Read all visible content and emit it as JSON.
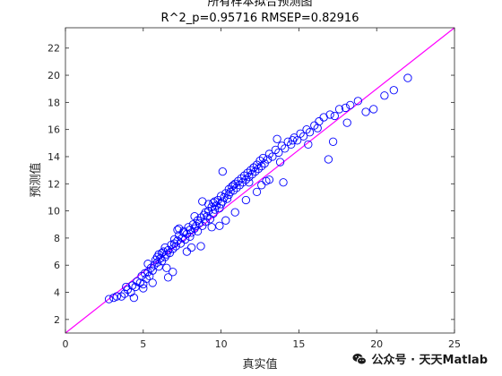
{
  "chart_data": {
    "type": "scatter",
    "title": "所有样本拟合预测图",
    "subtitle": "R^2_p=0.95716  RMSEP=0.82916",
    "xlabel": "真实值",
    "ylabel": "预测值",
    "xlim": [
      0,
      25
    ],
    "ylim": [
      1,
      23.5
    ],
    "xticks": [
      0,
      5,
      10,
      15,
      20,
      25
    ],
    "yticks": [
      2,
      4,
      6,
      8,
      10,
      12,
      14,
      16,
      18,
      20,
      22
    ],
    "grid": false,
    "colors": {
      "points": "#0000ff",
      "fit_line": "#ff00ff"
    },
    "fit_line": {
      "x": [
        0,
        25
      ],
      "y": [
        1,
        23.5
      ]
    },
    "points": {
      "x": [
        2.8,
        3.1,
        3.3,
        3.6,
        3.8,
        4.0,
        4.2,
        4.3,
        4.5,
        4.6,
        4.8,
        4.9,
        5.0,
        5.1,
        5.2,
        5.3,
        5.3,
        5.4,
        5.5,
        5.6,
        5.7,
        5.8,
        5.9,
        6.0,
        6.0,
        6.1,
        6.2,
        6.3,
        6.4,
        6.4,
        6.5,
        6.6,
        6.7,
        6.8,
        6.9,
        7.0,
        7.0,
        7.1,
        7.2,
        7.3,
        7.4,
        7.5,
        7.6,
        7.7,
        7.8,
        7.9,
        8.0,
        8.0,
        8.1,
        8.2,
        8.3,
        8.4,
        8.5,
        8.5,
        8.6,
        8.7,
        8.8,
        8.9,
        9.0,
        9.0,
        9.1,
        9.2,
        9.3,
        9.4,
        9.5,
        9.5,
        9.6,
        9.7,
        9.8,
        9.9,
        10.0,
        10.0,
        10.1,
        10.2,
        10.3,
        10.4,
        10.5,
        10.5,
        10.6,
        10.7,
        10.8,
        10.9,
        11.0,
        11.1,
        11.2,
        11.3,
        11.4,
        11.5,
        11.6,
        11.7,
        11.8,
        11.9,
        12.0,
        12.1,
        12.2,
        12.3,
        12.4,
        12.5,
        12.6,
        12.7,
        12.8,
        13.0,
        13.1,
        13.3,
        13.5,
        13.7,
        13.9,
        14.1,
        14.3,
        14.5,
        14.7,
        14.9,
        15.1,
        15.3,
        15.5,
        15.7,
        16.0,
        16.3,
        16.6,
        17.0,
        17.3,
        17.6,
        18.0,
        18.3,
        18.8,
        19.3,
        19.8,
        20.5,
        21.1,
        22.0,
        6.2,
        7.6,
        8.3,
        9.4,
        11.6,
        13.1,
        14.6,
        5.0,
        6.6,
        8.7,
        10.3,
        12.1,
        9.6,
        7.2,
        16.2,
        17.2,
        18.1,
        11.8,
        12.9,
        10.9,
        14.0,
        13.8,
        16.9,
        12.3,
        10.1,
        8.8,
        5.9,
        6.9,
        7.8,
        9.2,
        4.4,
        3.9,
        15.6,
        13.6,
        12.6,
        10.8,
        9.9,
        8.1,
        7.3,
        6.5,
        5.6
      ],
      "y": [
        3.5,
        3.6,
        3.7,
        3.7,
        3.9,
        4.2,
        4.0,
        4.5,
        4.4,
        4.8,
        4.7,
        5.2,
        4.6,
        5.4,
        5.0,
        5.5,
        6.1,
        5.2,
        5.8,
        5.6,
        6.0,
        6.4,
        6.2,
        5.9,
        6.8,
        6.5,
        6.3,
        7.0,
        6.6,
        7.3,
        6.8,
        7.1,
        6.9,
        7.5,
        7.2,
        7.6,
        7.9,
        7.4,
        7.8,
        8.2,
        7.6,
        8.0,
        8.5,
        7.9,
        8.3,
        8.8,
        8.1,
        8.6,
        8.4,
        9.0,
        8.7,
        8.9,
        9.3,
        8.5,
        9.1,
        9.5,
        8.9,
        9.7,
        9.2,
        9.9,
        9.6,
        10.0,
        9.4,
        10.3,
        9.8,
        10.6,
        10.1,
        10.4,
        10.8,
        10.2,
        10.5,
        11.1,
        10.7,
        11.0,
        11.3,
        10.9,
        11.6,
        11.2,
        11.4,
        11.8,
        11.5,
        12.0,
        11.7,
        12.2,
        11.9,
        12.4,
        12.1,
        12.6,
        12.3,
        12.8,
        12.5,
        13.0,
        12.7,
        13.2,
        12.9,
        13.4,
        13.1,
        13.7,
        13.3,
        13.9,
        13.5,
        13.8,
        14.2,
        14.0,
        14.5,
        14.3,
        14.8,
        14.6,
        15.1,
        14.9,
        15.4,
        15.2,
        15.7,
        15.5,
        16.0,
        15.8,
        16.3,
        16.6,
        16.9,
        17.1,
        17.0,
        17.5,
        17.6,
        17.8,
        18.1,
        17.3,
        17.5,
        18.5,
        18.9,
        19.8,
        6.9,
        8.4,
        9.6,
        8.8,
        10.8,
        12.3,
        15.2,
        4.3,
        5.1,
        7.4,
        9.3,
        13.2,
        10.7,
        8.6,
        16.1,
        15.1,
        16.5,
        12.1,
        12.2,
        9.9,
        12.1,
        13.6,
        13.8,
        11.4,
        12.9,
        10.7,
        6.6,
        5.5,
        7.0,
        10.5,
        3.6,
        4.4,
        14.9,
        15.3,
        11.9,
        11.9,
        8.9,
        7.3,
        8.7,
        5.8,
        4.7
      ]
    }
  },
  "watermark": {
    "text": "公众号 · 天天Matlab",
    "icon": "wechat-icon"
  }
}
